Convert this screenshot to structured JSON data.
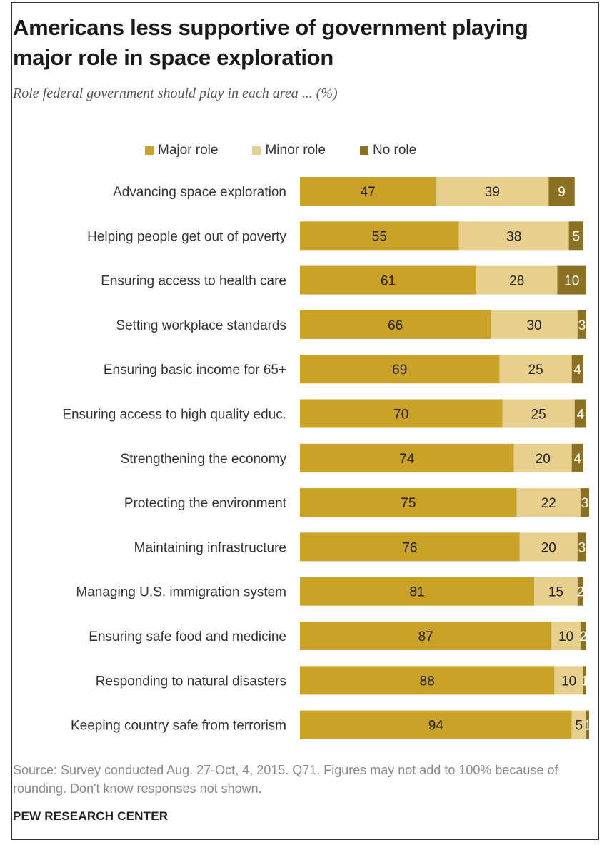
{
  "title": "Americans less supportive of government playing major role in space exploration",
  "subtitle": "Role federal government should play in each area ... (%)",
  "source": "Source: Survey conducted Aug. 27-Oct, 4, 2015. Q71. Figures may not add to 100% because of rounding. Don't know responses not shown.",
  "brand": "PEW RESEARCH CENTER",
  "colors": {
    "major": "#c9a227",
    "minor": "#e7d08e",
    "none": "#8c7122"
  },
  "chart_data": {
    "type": "bar",
    "orientation": "horizontal",
    "stacked": true,
    "xlim": [
      0,
      100
    ],
    "legend_position": "top",
    "categories": [
      "Advancing space exploration",
      "Helping people get out of poverty",
      "Ensuring access to health care",
      "Setting workplace standards",
      "Ensuring basic income for 65+",
      "Ensuring access to high quality educ.",
      "Strengthening the economy",
      "Protecting the environment",
      "Maintaining infrastructure",
      "Managing U.S. immigration system",
      "Ensuring safe food and medicine",
      "Responding to natural disasters",
      "Keeping country safe from terrorism"
    ],
    "series": [
      {
        "name": "Major role",
        "values": [
          47,
          55,
          61,
          66,
          69,
          70,
          74,
          75,
          76,
          81,
          87,
          88,
          94
        ]
      },
      {
        "name": "Minor role",
        "values": [
          39,
          38,
          28,
          30,
          25,
          25,
          20,
          22,
          20,
          15,
          10,
          10,
          5
        ]
      },
      {
        "name": "No role",
        "values": [
          9,
          5,
          10,
          3,
          4,
          4,
          4,
          3,
          3,
          2,
          2,
          1,
          1
        ]
      }
    ]
  }
}
